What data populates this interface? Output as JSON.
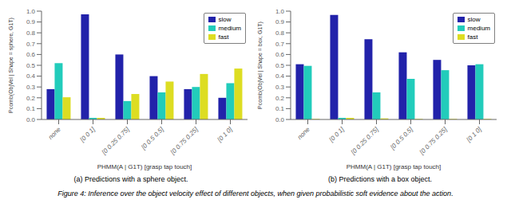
{
  "chart_data": [
    {
      "type": "bar",
      "subtitle": "(a) Predictions with a sphere object.",
      "ylabel": "Pcomb(ObjVel | Shape = sphere, G1T)",
      "xlabel": "PHMM(A | G1T) [grasp tap touch]",
      "categories": [
        "none",
        "[0 0 1]",
        "[0 0.25 0.75]",
        "[0 0.5 0.5]",
        "[0 0.75 0.25]",
        "[0 1 0]"
      ],
      "series": [
        {
          "name": "slow",
          "color": "#2222aa",
          "values": [
            0.28,
            0.97,
            0.6,
            0.4,
            0.28,
            0.2
          ]
        },
        {
          "name": "medium",
          "color": "#22ccbb",
          "values": [
            0.52,
            0.015,
            0.17,
            0.25,
            0.3,
            0.335
          ]
        },
        {
          "name": "fast",
          "color": "#dddd22",
          "values": [
            0.205,
            0.015,
            0.235,
            0.35,
            0.42,
            0.47
          ]
        }
      ],
      "ylim": [
        0,
        1.0
      ],
      "yticks": [
        {
          "value": 0.0,
          "label": "0.0"
        },
        0.1,
        0.2,
        0.3,
        0.4,
        0.5,
        0.6,
        0.7,
        0.8,
        0.9,
        {
          "value": 1.0,
          "label": "1.0"
        }
      ],
      "grid": false,
      "legend": "upper right"
    },
    {
      "type": "bar",
      "subtitle": "(b) Predictions with a box object.",
      "ylabel": "Pcomb(ObjVel | Shape = box, G1T)",
      "xlabel": "PHMM(A | G1T) [grasp tap touch]",
      "categories": [
        "none",
        "[0 0 1]",
        "[0 0.25 0.75]",
        "[0 0.5 0.5]",
        "[0 0.75 0.25]",
        "[0 1 0]"
      ],
      "series": [
        {
          "name": "slow",
          "color": "#2222aa",
          "values": [
            0.51,
            0.965,
            0.74,
            0.62,
            0.55,
            0.5
          ]
        },
        {
          "name": "medium",
          "color": "#22ccbb",
          "values": [
            0.495,
            0.015,
            0.25,
            0.375,
            0.455,
            0.51
          ]
        },
        {
          "name": "fast",
          "color": "#dddd22",
          "values": [
            0.005,
            0.015,
            0.01,
            0.005,
            0.005,
            0.005
          ]
        }
      ],
      "ylim": [
        0,
        1.0
      ],
      "yticks": [
        {
          "value": 0.0,
          "label": "0.0"
        },
        0.1,
        0.2,
        0.3,
        0.4,
        0.5,
        0.6,
        0.7,
        0.8,
        0.9,
        {
          "value": 1.0,
          "label": "1.0"
        }
      ],
      "grid": false,
      "legend": "upper right"
    }
  ],
  "caption": "Figure 4: Inference over the object velocity effect of different objects, when given probabilistic soft evidence about the action."
}
